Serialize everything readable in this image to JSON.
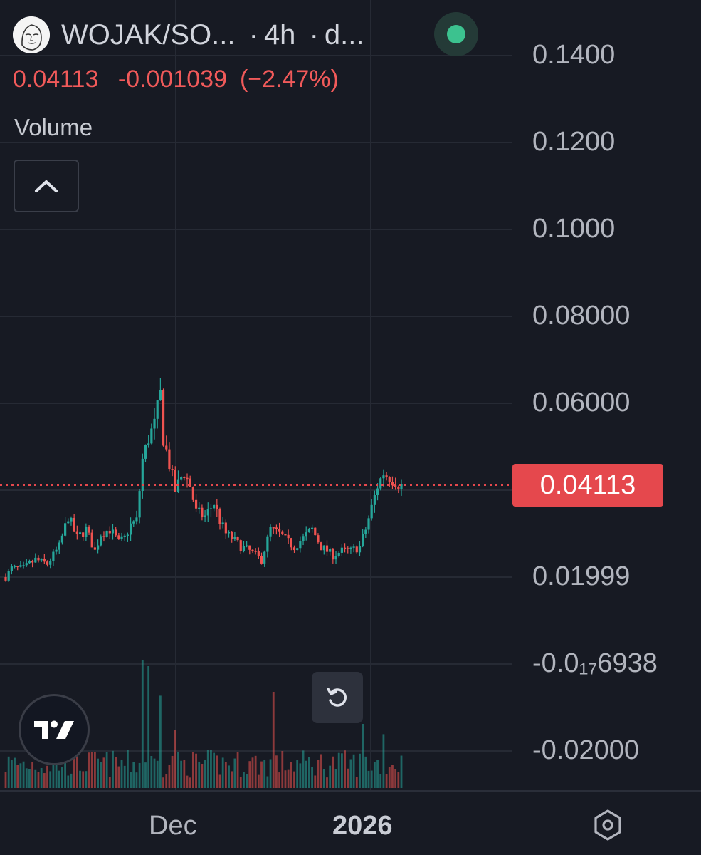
{
  "header": {
    "symbol": "WOJAK/SO...",
    "interval": "4h",
    "source": "d...",
    "separator": "·"
  },
  "quote": {
    "last": "0.04113",
    "change": "-0.001039",
    "change_pct": "(−2.47%)"
  },
  "volume_label": "Volume",
  "price_axis": {
    "labels": [
      "0.1400",
      "0.1200",
      "0.1000",
      "0.08000",
      "0.06000",
      "0.01999",
      "-0.0₁₇6938",
      "-0.02000"
    ],
    "current_price_tag": "0.04113"
  },
  "time_axis": {
    "labels": [
      "Dec",
      "2026"
    ]
  },
  "colors": {
    "background": "#171a23",
    "up": "#26a69a",
    "down": "#ef5350",
    "price_tag": "#e5484d",
    "grid": "#262a34"
  },
  "icons": {
    "collapse": "chevron-up-icon",
    "reset": "rotate-ccw-icon",
    "settings": "settings-hex-icon",
    "logo": "tradingview-logo-icon"
  },
  "chart_data": {
    "type": "candlestick",
    "interval": "4h",
    "yticks": [
      0.14,
      0.12,
      0.1,
      0.08,
      0.06,
      0.01999,
      -0.02
    ],
    "last_price": 0.04113,
    "path": [
      [
        0,
        0.02
      ],
      [
        2,
        0.022
      ],
      [
        6,
        0.022
      ],
      [
        10,
        0.024
      ],
      [
        14,
        0.023
      ],
      [
        18,
        0.027
      ],
      [
        21,
        0.034
      ],
      [
        24,
        0.029
      ],
      [
        27,
        0.031
      ],
      [
        30,
        0.026
      ],
      [
        32,
        0.03
      ],
      [
        35,
        0.031
      ],
      [
        38,
        0.028
      ],
      [
        40,
        0.029
      ],
      [
        42,
        0.032
      ],
      [
        44,
        0.033
      ],
      [
        46,
        0.047
      ],
      [
        48,
        0.052
      ],
      [
        50,
        0.055
      ],
      [
        52,
        0.062
      ],
      [
        53,
        0.052
      ],
      [
        55,
        0.046
      ],
      [
        57,
        0.04
      ],
      [
        59,
        0.043
      ],
      [
        60,
        0.044
      ],
      [
        62,
        0.041
      ],
      [
        64,
        0.035
      ],
      [
        67,
        0.034
      ],
      [
        70,
        0.037
      ],
      [
        72,
        0.033
      ],
      [
        74,
        0.03
      ],
      [
        76,
        0.029
      ],
      [
        79,
        0.027
      ],
      [
        82,
        0.026
      ],
      [
        84,
        0.025
      ],
      [
        86,
        0.024
      ],
      [
        89,
        0.031
      ],
      [
        92,
        0.03
      ],
      [
        95,
        0.028
      ],
      [
        97,
        0.027
      ],
      [
        100,
        0.029
      ],
      [
        103,
        0.031
      ],
      [
        106,
        0.027
      ],
      [
        110,
        0.025
      ],
      [
        113,
        0.026
      ],
      [
        116,
        0.026
      ],
      [
        119,
        0.027
      ],
      [
        121,
        0.031
      ],
      [
        123,
        0.036
      ],
      [
        125,
        0.041
      ],
      [
        127,
        0.044
      ],
      [
        129,
        0.043
      ],
      [
        131,
        0.042
      ],
      [
        133,
        0.041
      ]
    ],
    "volume_spikes": [
      [
        46,
        1.0
      ],
      [
        48,
        0.95
      ],
      [
        52,
        0.72
      ],
      [
        57,
        0.45
      ],
      [
        90,
        0.75
      ],
      [
        120,
        0.5
      ],
      [
        127,
        0.42
      ]
    ]
  }
}
